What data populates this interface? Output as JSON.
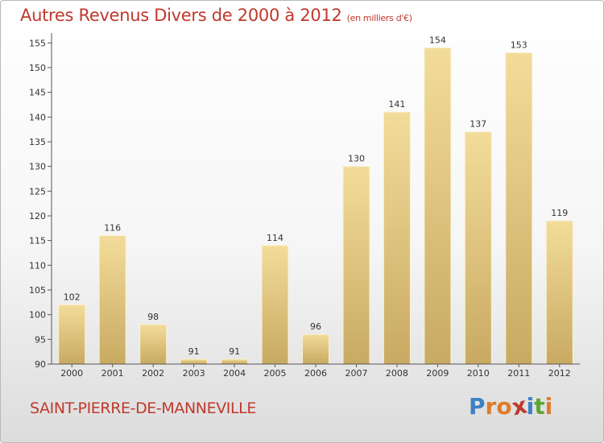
{
  "header": {
    "title": "Autres Revenus Divers de 2000 à 2012",
    "subtitle": "(en milliers d'€)"
  },
  "footer": {
    "place": "SAINT-PIERRE-DE-MANNEVILLE",
    "logo_letters": [
      "P",
      "r",
      "o",
      "x",
      "i",
      "t",
      "i"
    ],
    "logo_colors": [
      "#3b82c4",
      "#e07b2a",
      "#e07b2a",
      "#c0392b",
      "#3b82c4",
      "#5aa832",
      "#e07b2a"
    ]
  },
  "chart_data": {
    "type": "bar",
    "title": "Autres Revenus Divers de 2000 à 2012",
    "categories": [
      "2000",
      "2001",
      "2002",
      "2003",
      "2004",
      "2005",
      "2006",
      "2007",
      "2008",
      "2009",
      "2010",
      "2011",
      "2012"
    ],
    "values": [
      102,
      116,
      98,
      91,
      91,
      114,
      96,
      130,
      141,
      154,
      137,
      153,
      119
    ],
    "data_labels": [
      "102",
      "116",
      "98",
      "91",
      "91",
      "114",
      "96",
      "130",
      "141",
      "154",
      "137",
      "153",
      "119"
    ],
    "yticks": [
      "90",
      "95",
      "100",
      "105",
      "110",
      "115",
      "120",
      "125",
      "130",
      "135",
      "140",
      "145",
      "150",
      "155"
    ],
    "ylim": [
      90,
      157
    ],
    "grid": false,
    "bar_color": "#e8cd85"
  }
}
